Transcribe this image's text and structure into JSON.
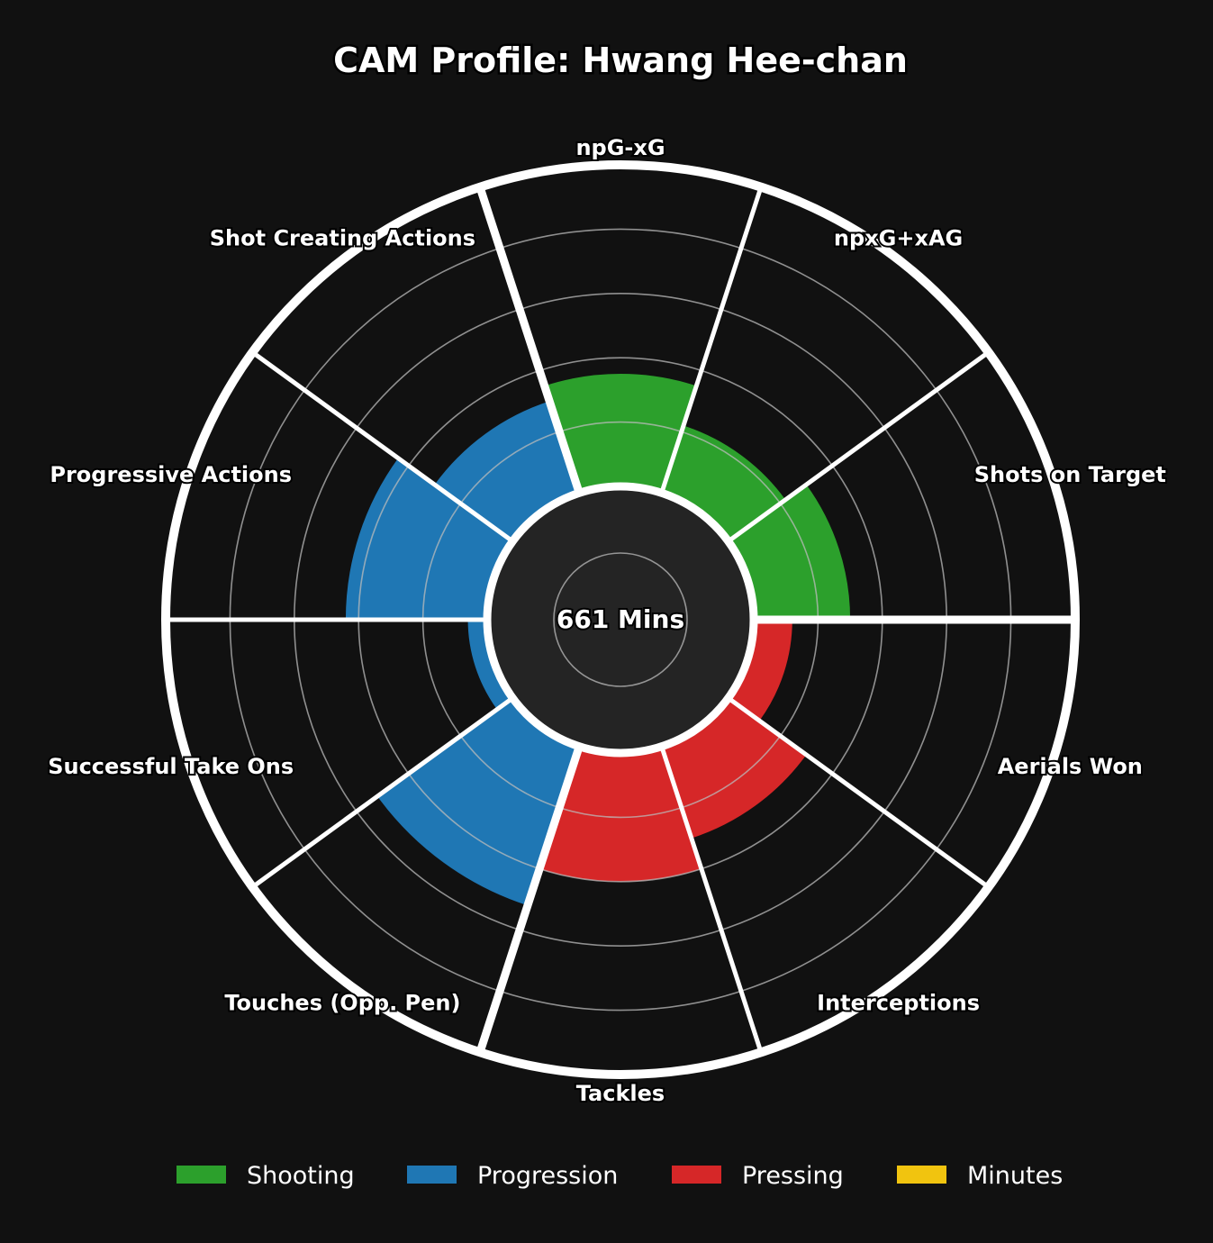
{
  "chart_data": {
    "type": "polar-bar",
    "title": "CAM Profile: Hwang Hee-chan",
    "center_label": "661 Mins",
    "rlim": [
      0,
      100
    ],
    "grid": true,
    "legend_position": "bottom",
    "categories": [
      "npG-xG",
      "npxG+xAG",
      "Shots on Target",
      "Aerials Won",
      "Interceptions",
      "Tackles",
      "Touches (Opp. Pen)",
      "Successful Take Ons",
      "Progressive Actions",
      "Shot Creating Actions"
    ],
    "values": [
      35,
      22,
      30,
      12,
      30,
      40,
      52,
      6,
      44,
      30
    ],
    "groups": [
      "Shooting",
      "Shooting",
      "Shooting",
      "Pressing",
      "Pressing",
      "Pressing",
      "Progression",
      "Progression",
      "Progression",
      "Progression"
    ],
    "legend": [
      {
        "name": "Shooting",
        "color": "#2ca02c"
      },
      {
        "name": "Progression",
        "color": "#1f77b4"
      },
      {
        "name": "Pressing",
        "color": "#d62728"
      },
      {
        "name": "Minutes",
        "color": "#f1c40f"
      }
    ],
    "colors": {
      "background": "#111111",
      "center_disc": "#242424",
      "grid": "#bbbbbb",
      "separator": "#ffffff"
    }
  }
}
